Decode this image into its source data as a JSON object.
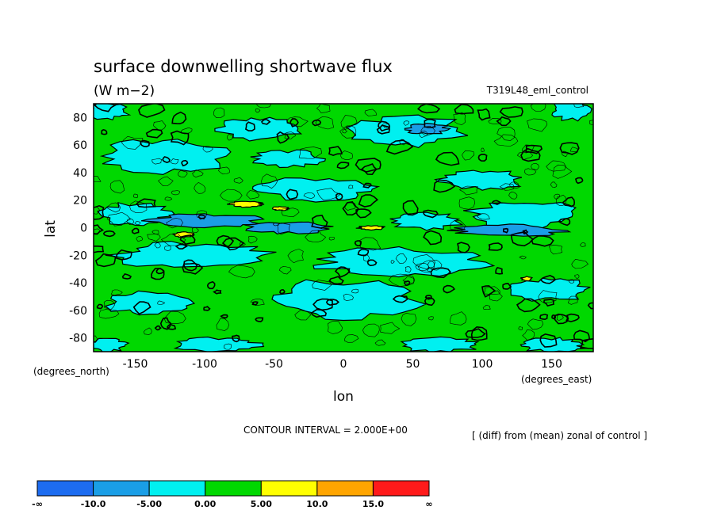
{
  "chart_data": {
    "type": "heatmap",
    "title": "surface downwelling shortwave flux",
    "units": "(W m−2)",
    "experiment": "T319L48_eml_control",
    "ylabel": "lat",
    "xlabel": "lon",
    "yunits": "(degrees_north)",
    "xunits": "(degrees_east)",
    "contour_interval": "CONTOUR INTERVAL = 2.000E+00",
    "note": "[ (diff) from (mean) zonal of control ]",
    "xlim": [
      -180,
      180
    ],
    "ylim": [
      -90,
      90
    ],
    "xticks": [
      -150,
      -100,
      -50,
      0,
      50,
      100,
      150
    ],
    "yticks": [
      80,
      60,
      40,
      20,
      0,
      -20,
      -40,
      -60,
      -80
    ],
    "colorbar": {
      "labels": [
        "-∞",
        "-10.0",
        "-5.00",
        "0.00",
        "5.00",
        "10.0",
        "15.0",
        "∞"
      ],
      "colors": [
        "#1d6cf0",
        "#1a9ee6",
        "#00f0f0",
        "#00d800",
        "#ffff00",
        "#ffa500",
        "#ff1a1a"
      ]
    },
    "regions": [
      {
        "level": 0,
        "color": "#00f0f0",
        "ellipses": [
          [
            -130,
            52,
            45,
            12
          ],
          [
            -60,
            72,
            30,
            8
          ],
          [
            45,
            70,
            40,
            12
          ],
          [
            -150,
            10,
            25,
            8
          ],
          [
            -20,
            28,
            45,
            8
          ],
          [
            130,
            10,
            40,
            10
          ],
          [
            60,
            5,
            25,
            6
          ],
          [
            -110,
            -20,
            55,
            9
          ],
          [
            40,
            -25,
            60,
            10
          ],
          [
            0,
            -52,
            55,
            14
          ],
          [
            -140,
            -55,
            30,
            8
          ],
          [
            150,
            -45,
            28,
            8
          ],
          [
            -170,
            85,
            15,
            6
          ],
          [
            165,
            85,
            16,
            7
          ],
          [
            -170,
            -85,
            14,
            5
          ],
          [
            -90,
            -85,
            30,
            5
          ],
          [
            70,
            -85,
            30,
            5
          ],
          [
            150,
            -85,
            25,
            5
          ],
          [
            100,
            35,
            30,
            7
          ],
          [
            -40,
            50,
            25,
            6
          ]
        ]
      },
      {
        "level": -1,
        "color": "#1a9ee6",
        "ellipses": [
          [
            -100,
            5,
            40,
            5
          ],
          [
            -40,
            0,
            30,
            4
          ],
          [
            60,
            72,
            15,
            4
          ],
          [
            120,
            -2,
            40,
            4
          ]
        ]
      },
      {
        "level": 1,
        "color": "#ffff00",
        "ellipses": [
          [
            -70,
            17,
            12,
            2
          ],
          [
            -115,
            -5,
            8,
            2
          ],
          [
            20,
            0,
            10,
            1.5
          ],
          [
            -45,
            14,
            6,
            1.5
          ],
          [
            132,
            -37,
            4,
            1.5
          ]
        ]
      }
    ]
  }
}
